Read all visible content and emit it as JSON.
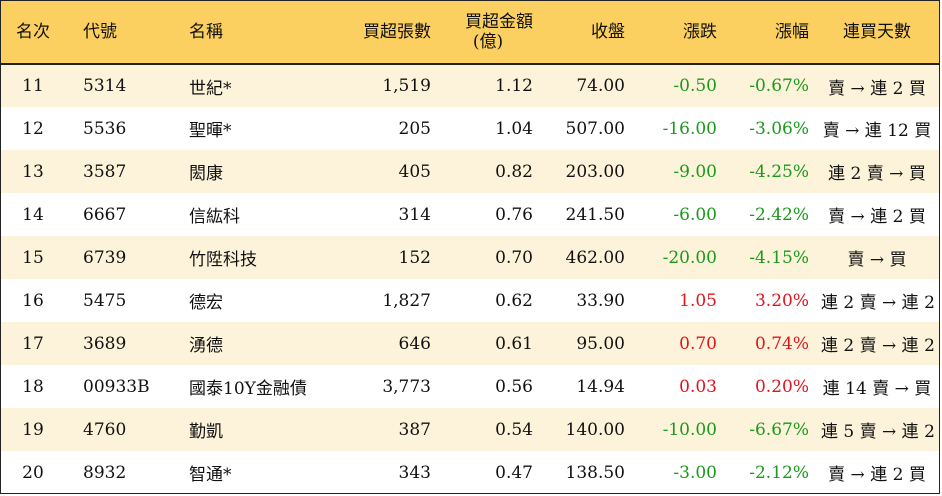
{
  "header": {
    "rank": "名次",
    "code": "代號",
    "name": "名稱",
    "buy_volume": "買超張數",
    "buy_amount_line1": "買超金額",
    "buy_amount_line2": "(億)",
    "close": "收盤",
    "change": "漲跌",
    "change_pct": "漲幅",
    "consecutive": "連買天數"
  },
  "colors": {
    "header_bg": "#fbcf60",
    "odd_row_bg": "#fdf3da",
    "negative": "#1a9a1a",
    "positive": "#e0141e"
  },
  "rows": [
    {
      "rank": "11",
      "code": "5314",
      "name": "世紀*",
      "buy_volume": "1,519",
      "buy_amount": "1.12",
      "close": "74.00",
      "change": "-0.50",
      "change_pct": "-0.67%",
      "consecutive": "賣 → 連 2 買",
      "direction": "neg"
    },
    {
      "rank": "12",
      "code": "5536",
      "name": "聖暉*",
      "buy_volume": "205",
      "buy_amount": "1.04",
      "close": "507.00",
      "change": "-16.00",
      "change_pct": "-3.06%",
      "consecutive": "賣 → 連 12 買",
      "direction": "neg"
    },
    {
      "rank": "13",
      "code": "3587",
      "name": "閎康",
      "buy_volume": "405",
      "buy_amount": "0.82",
      "close": "203.00",
      "change": "-9.00",
      "change_pct": "-4.25%",
      "consecutive": "連 2 賣 → 買",
      "direction": "neg"
    },
    {
      "rank": "14",
      "code": "6667",
      "name": "信紘科",
      "buy_volume": "314",
      "buy_amount": "0.76",
      "close": "241.50",
      "change": "-6.00",
      "change_pct": "-2.42%",
      "consecutive": "賣 → 連 2 買",
      "direction": "neg"
    },
    {
      "rank": "15",
      "code": "6739",
      "name": "竹陞科技",
      "buy_volume": "152",
      "buy_amount": "0.70",
      "close": "462.00",
      "change": "-20.00",
      "change_pct": "-4.15%",
      "consecutive": "賣 → 買",
      "direction": "neg"
    },
    {
      "rank": "16",
      "code": "5475",
      "name": "德宏",
      "buy_volume": "1,827",
      "buy_amount": "0.62",
      "close": "33.90",
      "change": "1.05",
      "change_pct": "3.20%",
      "consecutive": "連 2 賣 → 連 2 買",
      "direction": "pos"
    },
    {
      "rank": "17",
      "code": "3689",
      "name": "湧德",
      "buy_volume": "646",
      "buy_amount": "0.61",
      "close": "95.00",
      "change": "0.70",
      "change_pct": "0.74%",
      "consecutive": "連 2 賣 → 連 2 買",
      "direction": "pos"
    },
    {
      "rank": "18",
      "code": "00933B",
      "name": "國泰10Y金融債",
      "buy_volume": "3,773",
      "buy_amount": "0.56",
      "close": "14.94",
      "change": "0.03",
      "change_pct": "0.20%",
      "consecutive": "連 14 賣 → 買",
      "direction": "pos"
    },
    {
      "rank": "19",
      "code": "4760",
      "name": "勤凱",
      "buy_volume": "387",
      "buy_amount": "0.54",
      "close": "140.00",
      "change": "-10.00",
      "change_pct": "-6.67%",
      "consecutive": "連 5 賣 → 連 2 買",
      "direction": "neg"
    },
    {
      "rank": "20",
      "code": "8932",
      "name": "智通*",
      "buy_volume": "343",
      "buy_amount": "0.47",
      "close": "138.50",
      "change": "-3.00",
      "change_pct": "-2.12%",
      "consecutive": "賣 → 連 2 買",
      "direction": "neg"
    }
  ]
}
